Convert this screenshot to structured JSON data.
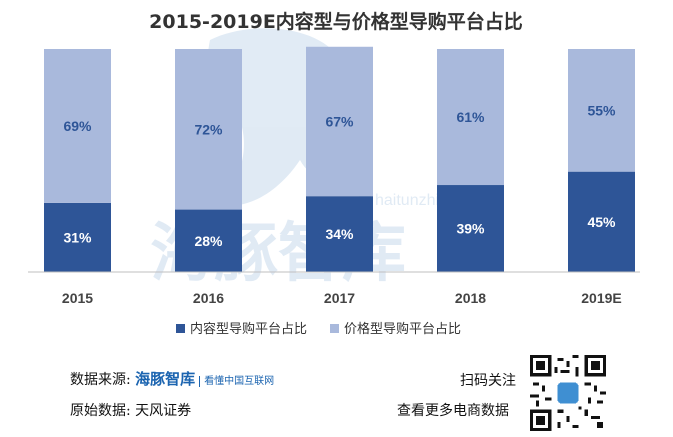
{
  "chart_data": {
    "type": "bar",
    "stacked": true,
    "title": "2015-2019E内容型与价格型导购平台占比",
    "categories": [
      "2015",
      "2016",
      "2017",
      "2018",
      "2019E"
    ],
    "series": [
      {
        "name": "内容型导购平台占比",
        "values": [
          31,
          28,
          34,
          39,
          45
        ],
        "color": "#2e5597",
        "label_color": "#ffffff"
      },
      {
        "name": "价格型导购平台占比",
        "values": [
          69,
          72,
          67,
          61,
          55
        ],
        "color": "#a9b9dc",
        "label_color": "#2e5597"
      }
    ],
    "value_suffix": "%",
    "ylim": [
      0,
      100
    ],
    "xlabel": "",
    "ylabel": "",
    "grid": false,
    "legend_position": "bottom"
  },
  "watermark": {
    "text": "海豚智库",
    "url_text": "haitunzhiku.com"
  },
  "footer": {
    "source_label": "数据来源:",
    "source_brand": "海豚智库",
    "source_brand_sub": "看懂中国互联网",
    "original_label": "原始数据:",
    "original_value": "天风证券",
    "scan_text": "扫码关注",
    "more_text": "查看更多电商数据"
  }
}
